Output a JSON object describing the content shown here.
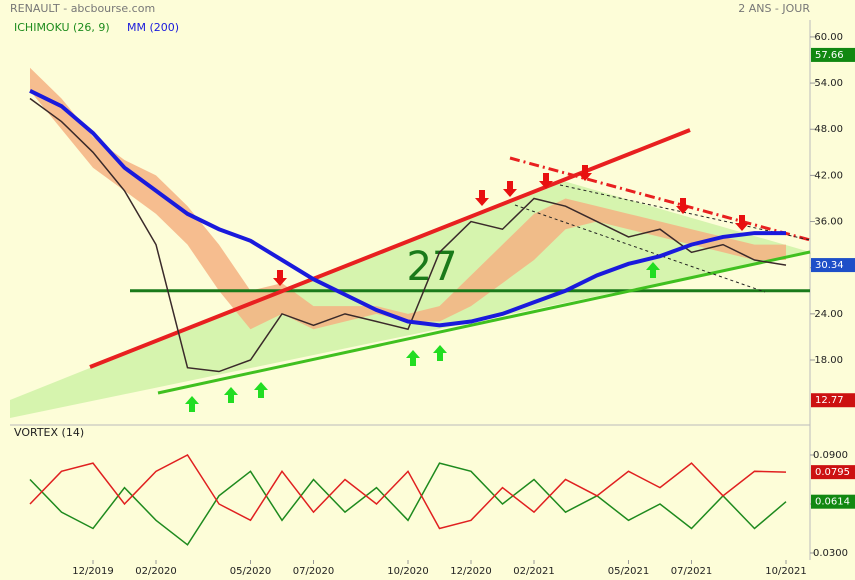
{
  "chart_data": [
    {
      "type": "line",
      "title": "RENAULT - abcbourse.com",
      "subtitle": "2 ANS - JOUR",
      "values": [
        52,
        49,
        45,
        40,
        33,
        17,
        16.5,
        18,
        24,
        22.5,
        24,
        23,
        22,
        32,
        36,
        35,
        39,
        38,
        36,
        34,
        35,
        32,
        33,
        31,
        30.34
      ],
      "color": "#3a2a2a",
      "series": [
        {
          "name": "ICHIMOKU (26, 9)",
          "color": "#1e8c1e",
          "fill": "#f4b183",
          "upper": [
            56,
            52,
            47,
            44,
            42,
            38,
            33,
            27,
            28,
            25,
            25,
            25,
            24,
            25,
            29,
            33,
            37,
            39,
            38,
            37,
            36,
            35,
            34,
            33,
            33
          ],
          "lower": [
            53,
            48,
            43,
            40,
            37,
            33,
            27,
            22,
            24,
            22,
            23,
            24,
            23,
            23,
            25,
            28,
            31,
            35,
            36,
            35,
            34,
            33,
            32,
            31,
            31
          ]
        },
        {
          "name": "MM (200)",
          "color": "#1a1adc",
          "values": [
            53,
            51,
            47.5,
            43,
            40,
            37,
            35,
            33.5,
            31,
            28.5,
            26.5,
            24.5,
            23,
            22.5,
            23,
            24,
            25.5,
            27,
            29,
            30.5,
            31.5,
            33,
            34,
            34.5,
            34.5
          ]
        }
      ],
      "high": 57.66,
      "low": 12.77,
      "level": 27,
      "level_color": "#1a7a1a",
      "ylim": [
        10.2,
        62.2
      ],
      "yticks": [
        {
          "value": 18,
          "label": "18.00"
        },
        {
          "value": 24,
          "label": "24.00"
        },
        {
          "value": 30,
          "label": "30.00"
        },
        {
          "value": 36,
          "label": "36.00"
        },
        {
          "value": 42,
          "label": "42.00"
        },
        {
          "value": 48,
          "label": "48.00"
        },
        {
          "value": 54,
          "label": "54.00"
        },
        {
          "value": 60,
          "label": "60.00"
        }
      ]
    },
    {
      "type": "line",
      "title": "VORTEX (14)",
      "categories": [
        null,
        null,
        "12/2019",
        null,
        "02/2020",
        null,
        null,
        "05/2020",
        null,
        "07/2020",
        null,
        null,
        "10/2020",
        null,
        "12/2020",
        null,
        "02/2021",
        null,
        null,
        "05/2021",
        null,
        "07/2021",
        null,
        null,
        "10/2021"
      ],
      "series": [
        {
          "color": "#1e8a1e",
          "values": [
            0.075,
            0.055,
            0.045,
            0.07,
            0.05,
            0.035,
            0.065,
            0.08,
            0.05,
            0.075,
            0.055,
            0.07,
            0.05,
            0.085,
            0.08,
            0.06,
            0.075,
            0.055,
            0.065,
            0.05,
            0.06,
            0.045,
            0.065,
            0.045,
            0.0614
          ]
        },
        {
          "color": "#e02020",
          "values": [
            0.06,
            0.08,
            0.085,
            0.06,
            0.08,
            0.09,
            0.06,
            0.05,
            0.08,
            0.055,
            0.075,
            0.06,
            0.08,
            0.045,
            0.05,
            0.07,
            0.055,
            0.075,
            0.065,
            0.08,
            0.07,
            0.085,
            0.065,
            0.08,
            0.0795
          ]
        }
      ],
      "ylim": [
        0.0257,
        0.1004
      ],
      "yticks": [
        {
          "value": 0.03,
          "label": "0.0300"
        },
        {
          "value": 0.06,
          "label": "0.0600"
        },
        {
          "value": 0.09,
          "label": "0.0900"
        }
      ]
    }
  ]
}
